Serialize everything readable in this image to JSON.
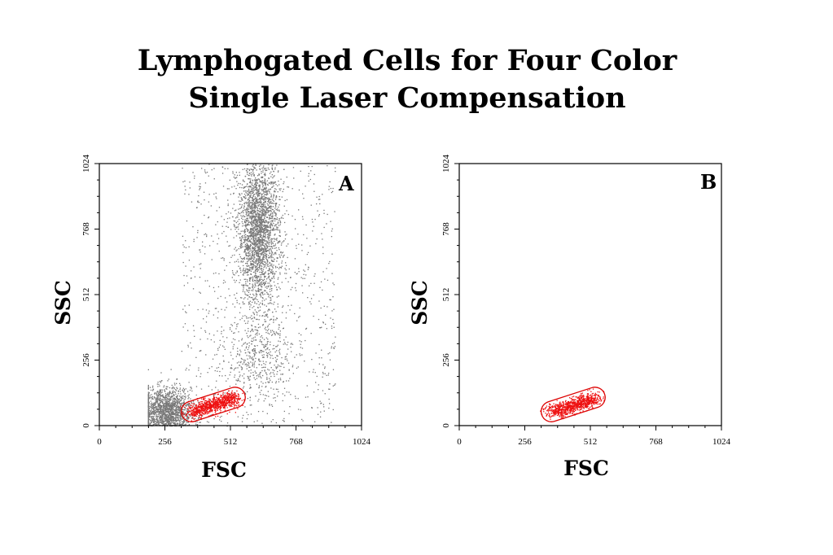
{
  "title": {
    "line1": "Lymphogated Cells for Four Color",
    "line2": "Single Laser Compensation"
  },
  "chart_data": [
    {
      "type": "scatter",
      "panel": "A",
      "xlabel": "FSC",
      "ylabel": "SSC",
      "xlim": [
        0,
        1024
      ],
      "ylim": [
        0,
        1024
      ],
      "x_ticks": [
        "0",
        "256",
        "512",
        "768",
        "1024"
      ],
      "y_ticks": [
        "0",
        "256",
        "512",
        "768",
        "1024"
      ],
      "grid": false,
      "colors": {
        "events": "#777777",
        "gated": "#ee1111"
      },
      "populations": [
        {
          "label": "lymphocytes (gated)",
          "color": "#ee1111",
          "center": [
            420,
            70
          ],
          "spread": [
            60,
            30
          ],
          "count": 900
        },
        {
          "label": "low-FSC debris",
          "color": "#777777",
          "center": [
            260,
            60
          ],
          "spread": [
            50,
            45
          ],
          "count": 1500
        },
        {
          "label": "granulocytes",
          "color": "#777777",
          "center": [
            620,
            760
          ],
          "spread": [
            40,
            140
          ],
          "count": 2500
        },
        {
          "label": "monocytes",
          "color": "#777777",
          "center": [
            620,
            280
          ],
          "spread": [
            60,
            80
          ],
          "count": 400
        },
        {
          "label": "background",
          "color": "#777777",
          "center": [
            560,
            512
          ],
          "spread": [
            300,
            300
          ],
          "count": 900
        }
      ],
      "gate": {
        "shape": "capsule",
        "from": [
          360,
          55
        ],
        "to": [
          530,
          110
        ],
        "width": 80
      }
    },
    {
      "type": "scatter",
      "panel": "B",
      "xlabel": "FSC",
      "ylabel": "SSC",
      "xlim": [
        0,
        1024
      ],
      "ylim": [
        0,
        1024
      ],
      "x_ticks": [
        "0",
        "256",
        "512",
        "768",
        "1024"
      ],
      "y_ticks": [
        "0",
        "256",
        "512",
        "768",
        "1024"
      ],
      "grid": false,
      "colors": {
        "gated": "#ee1111"
      },
      "populations": [
        {
          "label": "lymphocytes (gated)",
          "color": "#ee1111",
          "center": [
            420,
            70
          ],
          "spread": [
            60,
            30
          ],
          "count": 900
        }
      ],
      "gate": {
        "shape": "capsule",
        "from": [
          360,
          55
        ],
        "to": [
          530,
          110
        ],
        "width": 80
      }
    }
  ]
}
